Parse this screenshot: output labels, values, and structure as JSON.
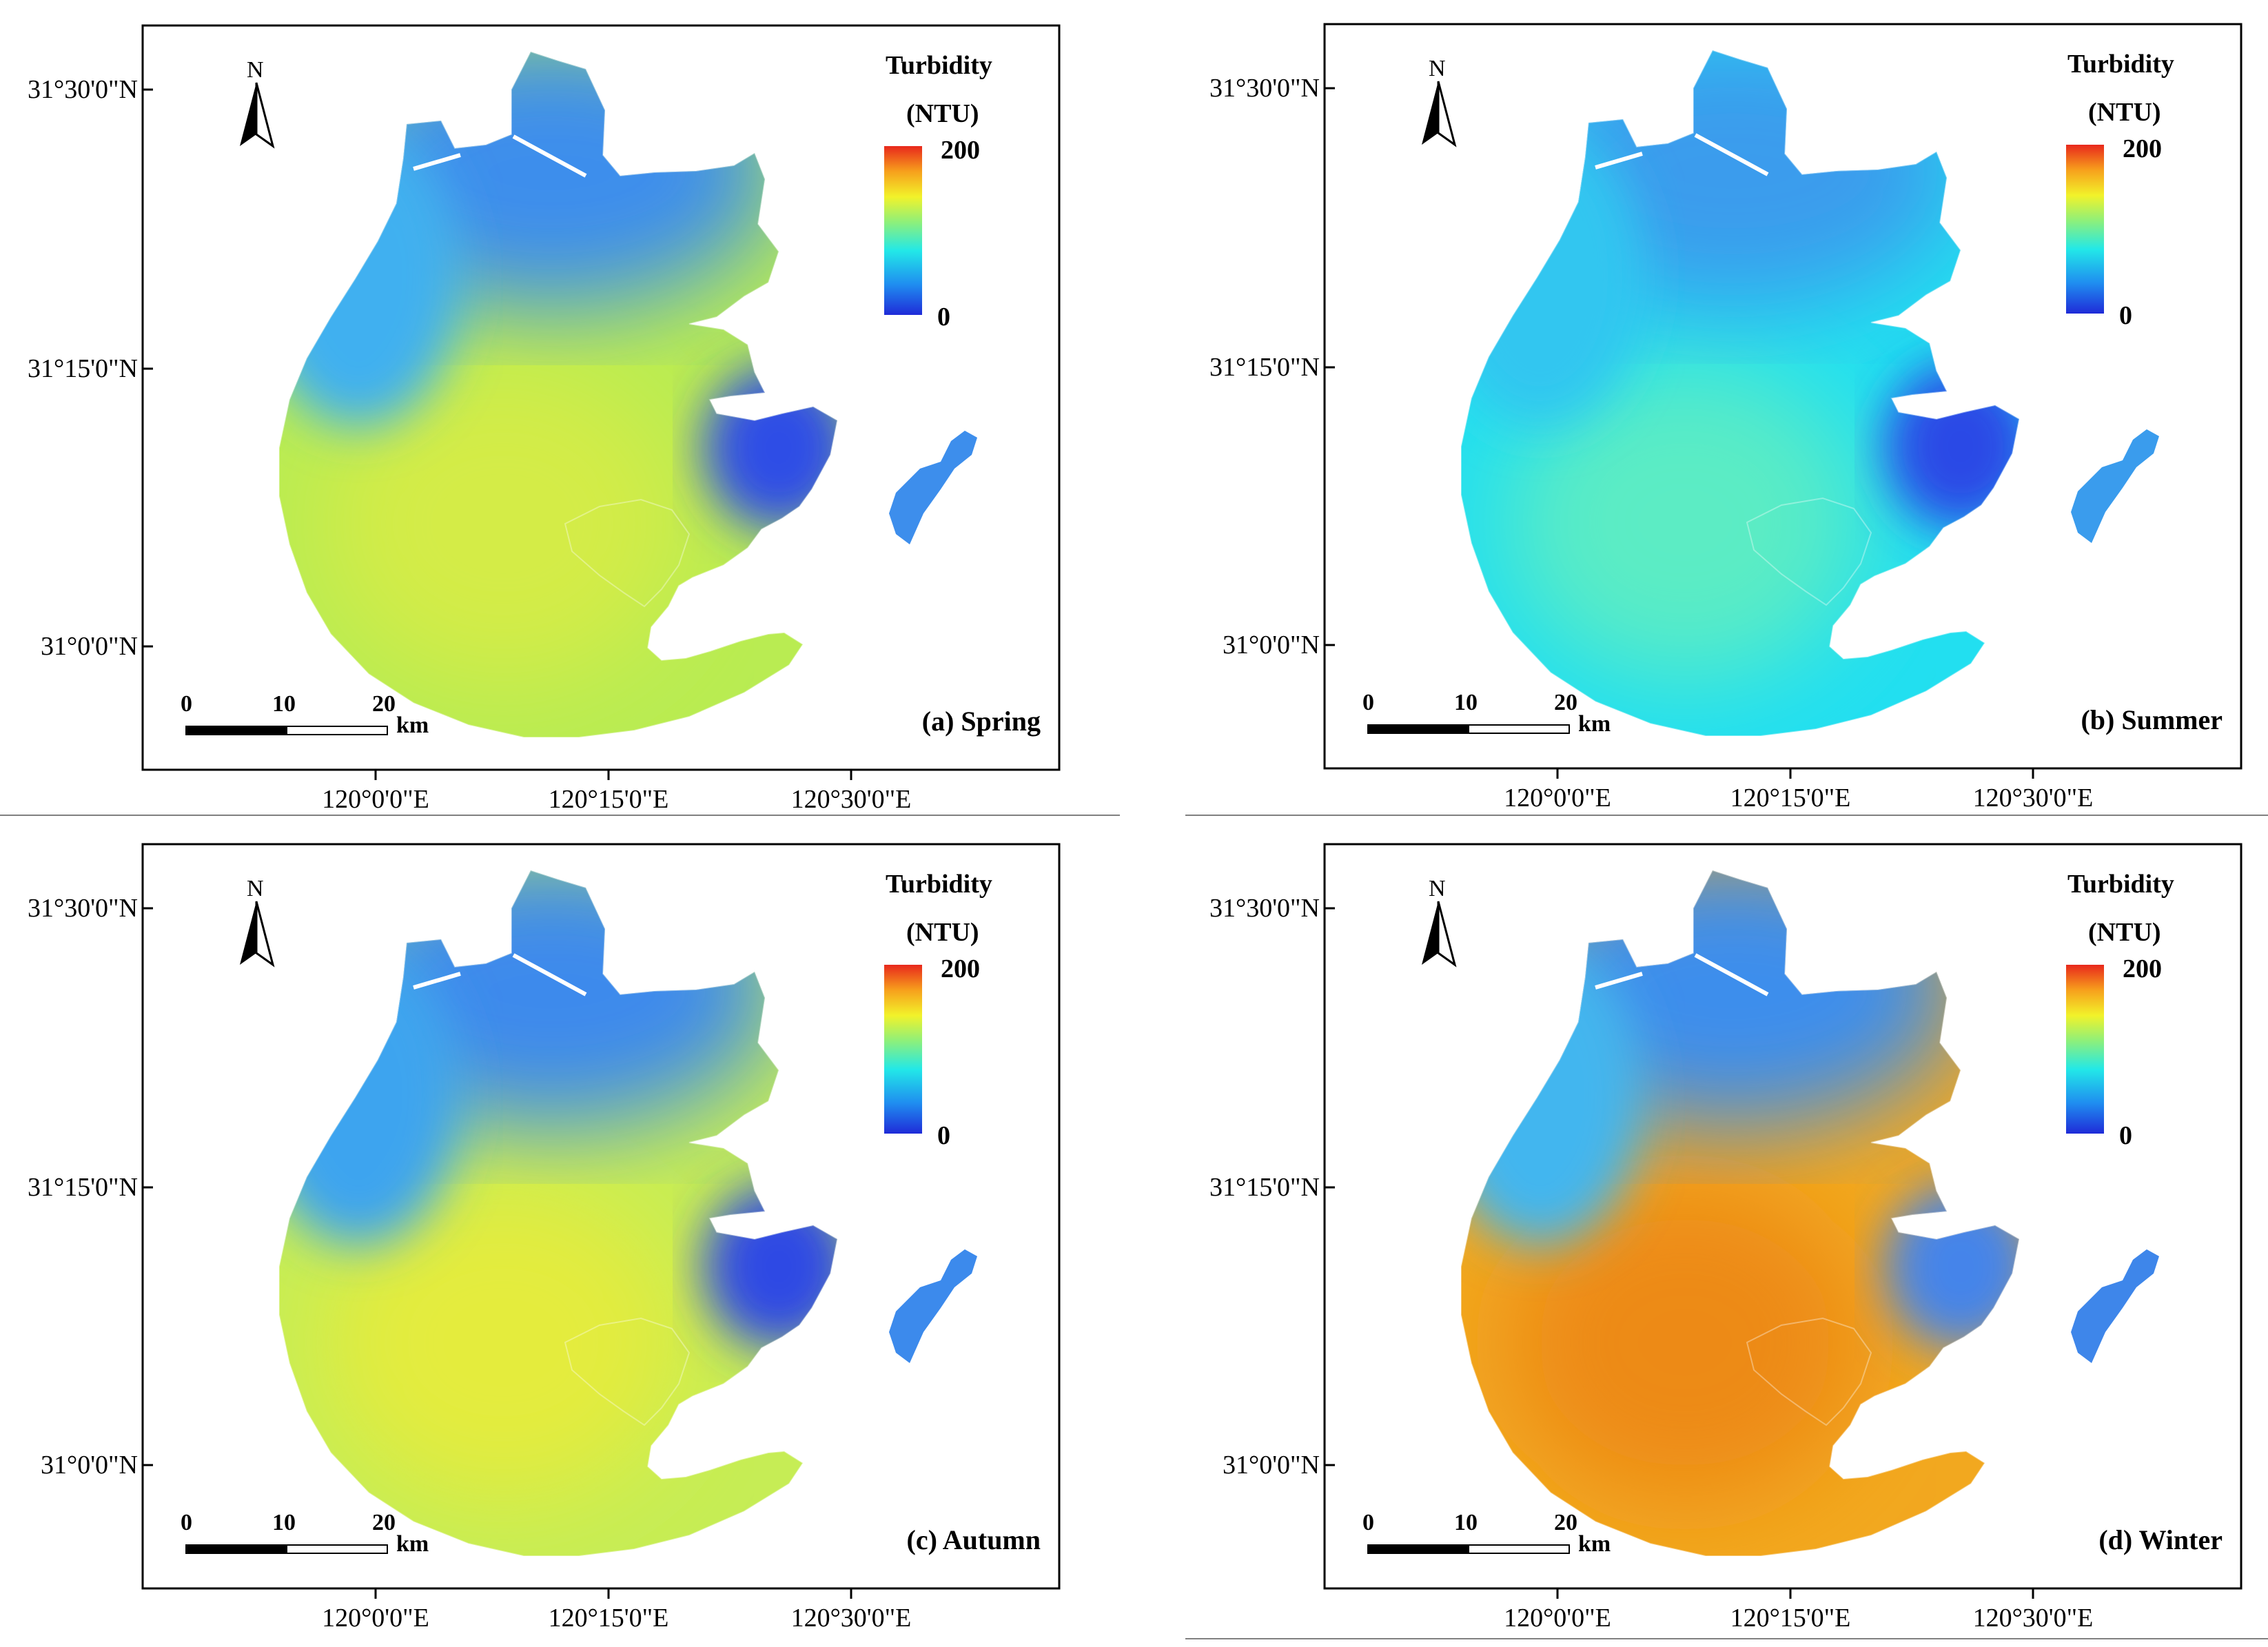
{
  "figure": {
    "legend_title": "Turbidity",
    "legend_unit": "(NTU)",
    "legend_max": "200",
    "legend_min": "0",
    "north_label": "N",
    "scale_labels": [
      "0",
      "10",
      "20"
    ],
    "scale_unit": "km",
    "lat_labels": [
      "31°30'0\"N",
      "31°15'0\"N",
      "31°0'0\"N"
    ],
    "lon_labels": [
      "120°0'0\"E",
      "120°15'0\"E",
      "120°30'0\"E"
    ],
    "colormap": [
      "#1f2bd8",
      "#1f8df0",
      "#22e8e8",
      "#8ef07a",
      "#f2f22a",
      "#f7a01c",
      "#e8281c"
    ]
  },
  "panels": [
    {
      "label": "(a) Spring",
      "palette": {
        "base": "#b9ec52",
        "north": "#3d8eec",
        "nw": "#3fb0f0",
        "east": "#2f4ee6",
        "core": "#d4ec47"
      }
    },
    {
      "label": "(b) Summer",
      "palette": {
        "base": "#22dff0",
        "north": "#3a9ced",
        "nw": "#32c6f0",
        "east": "#2c4ae6",
        "core": "#5cecc4"
      }
    },
    {
      "label": "(c) Autumn",
      "palette": {
        "base": "#c6ed55",
        "north": "#3c8aec",
        "nw": "#3ea4ef",
        "east": "#2e48e4",
        "core": "#e4ec3e"
      }
    },
    {
      "label": "(d) Winter",
      "palette": {
        "base": "#f2a81f",
        "north": "#3d8eec",
        "nw": "#42b6ef",
        "east": "#4584ea",
        "core": "#ed8a18"
      }
    }
  ]
}
